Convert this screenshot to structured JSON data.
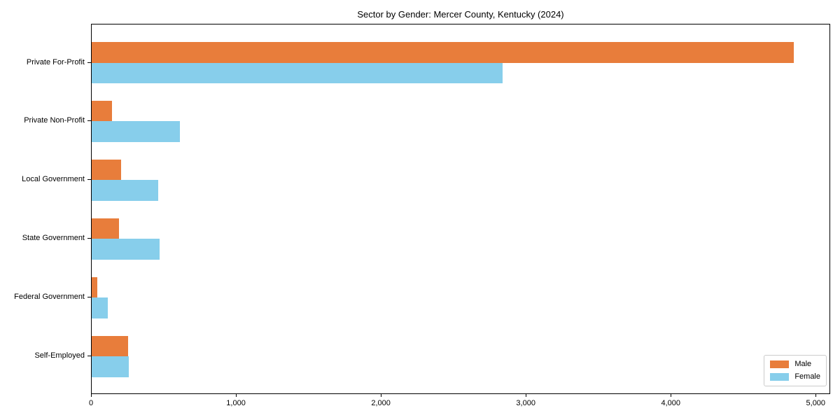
{
  "chart_data": {
    "type": "bar",
    "orientation": "horizontal",
    "title": "Sector by Gender: Mercer County, Kentucky (2024)",
    "categories": [
      "Private For-Profit",
      "Private Non-Profit",
      "Local Government",
      "State Government",
      "Federal Government",
      "Self-Employed"
    ],
    "series": [
      {
        "name": "Male",
        "color": "#E87D3B",
        "values": [
          4855,
          140,
          205,
          190,
          40,
          250
        ]
      },
      {
        "name": "Female",
        "color": "#87CEEB",
        "values": [
          2840,
          610,
          460,
          470,
          110,
          255
        ]
      }
    ],
    "xlabel": "",
    "ylabel": "",
    "xlim": [
      0,
      5100
    ],
    "xticks": [
      0,
      1000,
      2000,
      3000,
      4000,
      5000
    ],
    "xtick_labels": [
      "0",
      "1,000",
      "2,000",
      "3,000",
      "4,000",
      "5,000"
    ],
    "grid": false,
    "legend_position": "lower right",
    "spine_color": "#000000",
    "background_color": "#ffffff"
  }
}
